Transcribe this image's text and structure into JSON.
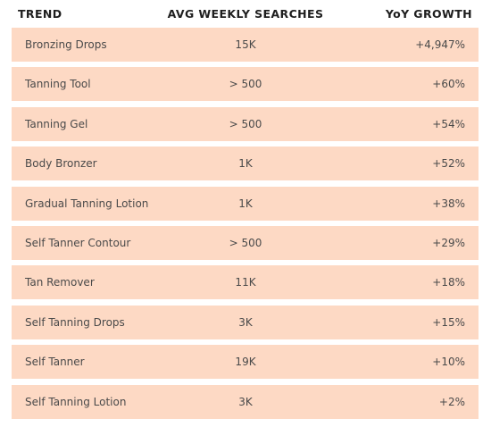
{
  "headers": {
    "trend": "TREND",
    "avg_weekly_searches": "AVG WEEKLY SEARCHES",
    "yoy_growth": "YoY GROWTH"
  },
  "colors": {
    "row_background": "#fdd9c4",
    "header_text": "#1e1e1e",
    "cell_text": "#4a4a4a"
  },
  "rows": [
    {
      "trend": "Bronzing Drops",
      "avg": "15K",
      "yoy": "+4,947%"
    },
    {
      "trend": "Tanning Tool",
      "avg": "> 500",
      "yoy": "+60%"
    },
    {
      "trend": "Tanning Gel",
      "avg": "> 500",
      "yoy": "+54%"
    },
    {
      "trend": "Body Bronzer",
      "avg": "1K",
      "yoy": "+52%"
    },
    {
      "trend": "Gradual Tanning Lotion",
      "avg": "1K",
      "yoy": "+38%"
    },
    {
      "trend": "Self Tanner Contour",
      "avg": "> 500",
      "yoy": "+29%"
    },
    {
      "trend": "Tan Remover",
      "avg": "11K",
      "yoy": "+18%"
    },
    {
      "trend": "Self Tanning Drops",
      "avg": "3K",
      "yoy": "+15%"
    },
    {
      "trend": "Self Tanner",
      "avg": "19K",
      "yoy": "+10%"
    },
    {
      "trend": "Self Tanning Lotion",
      "avg": "3K",
      "yoy": "+2%"
    }
  ]
}
